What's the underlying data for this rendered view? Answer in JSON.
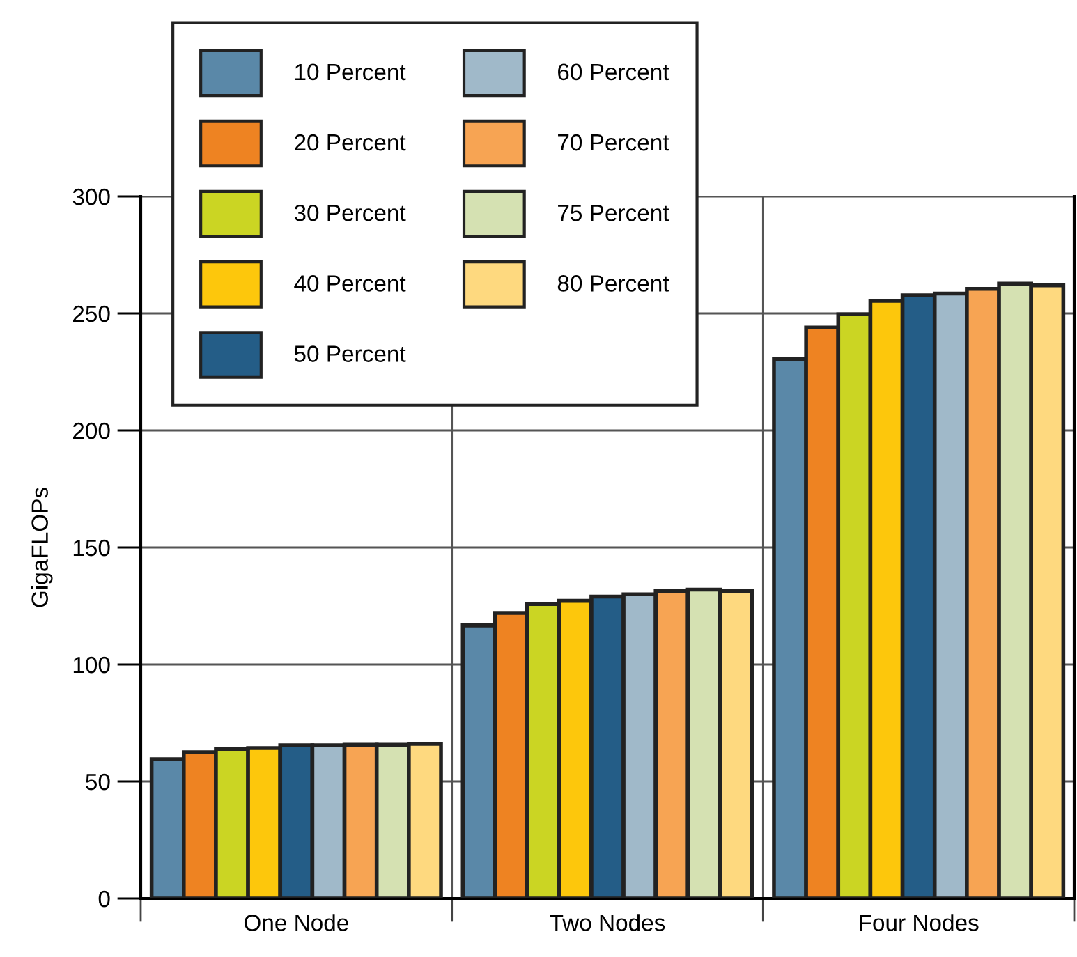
{
  "chart_data": {
    "type": "bar",
    "ylabel": "GigaFLOPs",
    "categories": [
      "One Node",
      "Two Nodes",
      "Four Nodes"
    ],
    "ylim": [
      0,
      300
    ],
    "yticks": [
      0,
      50,
      100,
      150,
      200,
      250,
      300
    ],
    "grid": true,
    "legend": "top left",
    "series": [
      {
        "name": "10 Percent",
        "color": "#5a88a8",
        "values": [
          59.5,
          116.7,
          230.6
        ]
      },
      {
        "name": "20 Percent",
        "color": "#ee8322",
        "values": [
          62.5,
          122,
          244
        ]
      },
      {
        "name": "30 Percent",
        "color": "#cbd523",
        "values": [
          63.9,
          125.8,
          249.6
        ]
      },
      {
        "name": "40 Percent",
        "color": "#fdc70c",
        "values": [
          64.3,
          127.2,
          255.4
        ]
      },
      {
        "name": "50 Percent",
        "color": "#245d87",
        "values": [
          65.5,
          129,
          257.7
        ]
      },
      {
        "name": "60 Percent",
        "color": "#a0b9c9",
        "values": [
          65.5,
          130,
          258.5
        ]
      },
      {
        "name": "70 Percent",
        "color": "#f7a453",
        "values": [
          65.7,
          131.3,
          260.5
        ]
      },
      {
        "name": "75 Percent",
        "color": "#d5e1b2",
        "values": [
          65.7,
          132,
          262.7
        ]
      },
      {
        "name": "80 Percent",
        "color": "#fed97f",
        "values": [
          66.1,
          131.5,
          262
        ]
      }
    ]
  }
}
